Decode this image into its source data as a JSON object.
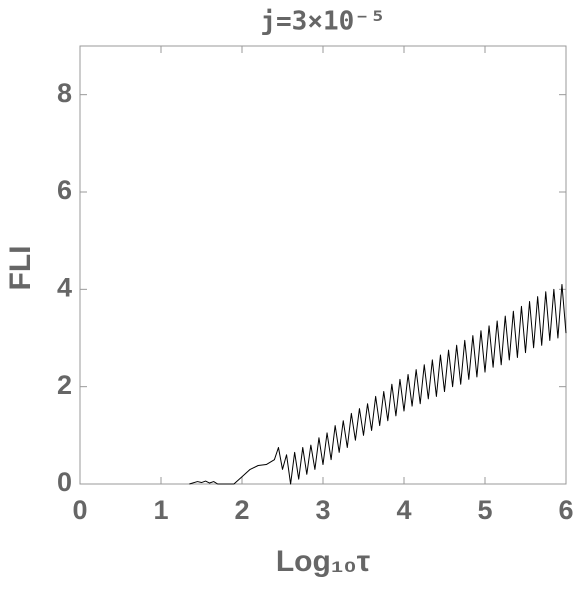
{
  "chart_data": {
    "type": "line",
    "title": "j=3×10⁻⁵",
    "xlabel": "Log₁₀τ",
    "ylabel": "FLI",
    "xlim": [
      0,
      6
    ],
    "ylim": [
      0,
      9
    ],
    "xticks": [
      0,
      1,
      2,
      3,
      4,
      5,
      6
    ],
    "yticks": [
      0,
      2,
      4,
      6,
      8
    ],
    "x": [
      1.35,
      1.45,
      1.5,
      1.55,
      1.6,
      1.65,
      1.7,
      1.8,
      1.9,
      2.0,
      2.1,
      2.2,
      2.3,
      2.4,
      2.45,
      2.5,
      2.55,
      2.6,
      2.65,
      2.7,
      2.75,
      2.8,
      2.85,
      2.9,
      2.95,
      3.0,
      3.05,
      3.1,
      3.15,
      3.2,
      3.25,
      3.3,
      3.35,
      3.4,
      3.45,
      3.5,
      3.55,
      3.6,
      3.65,
      3.7,
      3.75,
      3.8,
      3.85,
      3.9,
      3.95,
      4.0,
      4.05,
      4.1,
      4.15,
      4.2,
      4.25,
      4.3,
      4.35,
      4.4,
      4.45,
      4.5,
      4.55,
      4.6,
      4.65,
      4.7,
      4.75,
      4.8,
      4.85,
      4.9,
      4.95,
      5.0,
      5.05,
      5.1,
      5.15,
      5.2,
      5.25,
      5.3,
      5.35,
      5.4,
      5.45,
      5.5,
      5.55,
      5.6,
      5.65,
      5.7,
      5.75,
      5.8,
      5.85,
      5.9,
      5.95,
      6.0
    ],
    "series": [
      {
        "color": "#000000",
        "values": [
          0,
          0.05,
          0.03,
          0.06,
          0.02,
          0.05,
          0,
          0,
          0,
          0.15,
          0.3,
          0.38,
          0.4,
          0.5,
          0.75,
          0.3,
          0.6,
          0.0,
          0.65,
          0.1,
          0.75,
          0.2,
          0.8,
          0.3,
          0.95,
          0.4,
          1.05,
          0.5,
          1.2,
          0.65,
          1.3,
          0.75,
          1.45,
          0.9,
          1.55,
          1.0,
          1.65,
          1.1,
          1.8,
          1.2,
          1.9,
          1.3,
          2.05,
          1.4,
          2.15,
          1.5,
          2.25,
          1.6,
          2.35,
          1.65,
          2.45,
          1.75,
          2.55,
          1.8,
          2.65,
          1.9,
          2.75,
          2.0,
          2.85,
          2.05,
          2.95,
          2.15,
          3.05,
          2.2,
          3.15,
          2.3,
          3.25,
          2.4,
          3.35,
          2.45,
          3.45,
          2.55,
          3.55,
          2.6,
          3.65,
          2.7,
          3.75,
          2.8,
          3.85,
          2.85,
          3.95,
          2.95,
          4.0,
          3.0,
          4.1,
          3.1
        ]
      }
    ]
  }
}
